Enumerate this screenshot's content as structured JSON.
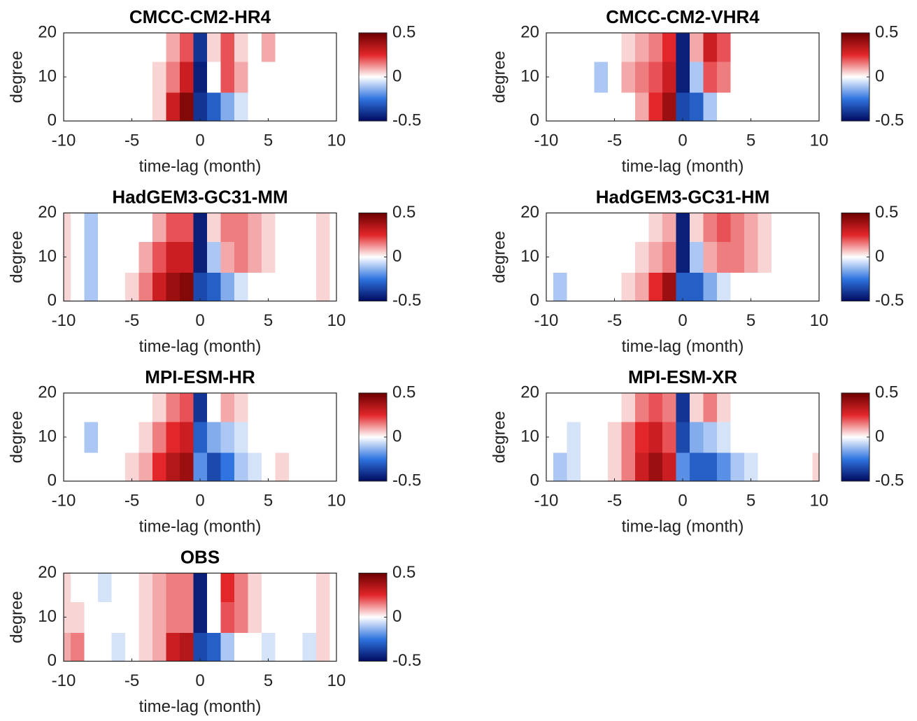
{
  "chart_data": [
    {
      "type": "contour",
      "title": "CMCC-CM2-HR4",
      "xlabel": "time-lag (month)",
      "ylabel": "degree",
      "x": [
        -10,
        -9,
        -8,
        -7,
        -6,
        -5,
        -4,
        -3,
        -2,
        -1,
        0,
        1,
        2,
        3,
        4,
        5,
        6,
        7,
        8,
        9,
        10
      ],
      "y": [
        3,
        10,
        17
      ],
      "z": [
        [
          0,
          0,
          0,
          0,
          0,
          0,
          0,
          0.05,
          0.3,
          0.45,
          -0.4,
          -0.3,
          -0.15,
          -0.05,
          0,
          0,
          0,
          0,
          0,
          0,
          0
        ],
        [
          0,
          0,
          0,
          0,
          0,
          0,
          0,
          0.05,
          0.15,
          0.3,
          -0.45,
          0,
          0.2,
          0.1,
          0,
          0,
          0,
          0,
          0,
          0,
          0
        ],
        [
          0,
          0,
          0,
          0,
          0,
          0,
          0,
          0,
          0.1,
          0.2,
          -0.4,
          0.05,
          0.2,
          0.05,
          0,
          0.1,
          0,
          0,
          0,
          0,
          0
        ]
      ],
      "xlim": [
        -10,
        10
      ],
      "xticks": [
        -10,
        -5,
        0,
        5,
        10
      ],
      "ylim": [
        0,
        20
      ],
      "yticks": [
        0,
        10,
        20
      ],
      "clim": [
        -0.5,
        0.5
      ],
      "cticks": [
        0.5,
        0,
        -0.5
      ],
      "cmap": [
        "#000a5e",
        "#2f74e0",
        "#ffffff",
        "#e2262a",
        "#6b0000"
      ]
    },
    {
      "type": "contour",
      "title": "CMCC-CM2-VHR4",
      "xlabel": "time-lag (month)",
      "ylabel": "degree",
      "x": [
        -10,
        -9,
        -8,
        -7,
        -6,
        -5,
        -4,
        -3,
        -2,
        -1,
        0,
        1,
        2,
        3,
        4,
        5,
        6,
        7,
        8,
        9,
        10
      ],
      "y": [
        3,
        10,
        17
      ],
      "z": [
        [
          0,
          0,
          0,
          0,
          0,
          0,
          0,
          0.1,
          0.25,
          0.4,
          -0.35,
          -0.3,
          -0.1,
          0,
          0,
          0,
          0,
          0,
          0,
          0,
          0
        ],
        [
          0,
          0,
          0,
          0,
          -0.1,
          0,
          0.1,
          0.15,
          0.2,
          0.3,
          -0.45,
          -0.1,
          0.2,
          0.15,
          0,
          0,
          0,
          0,
          0,
          0,
          0
        ],
        [
          0,
          0,
          0,
          0,
          0,
          0,
          0.05,
          0.1,
          0.15,
          0.25,
          -0.45,
          0.1,
          0.3,
          0.2,
          0,
          0,
          0,
          0,
          0,
          0,
          0
        ]
      ],
      "xlim": [
        -10,
        10
      ],
      "xticks": [
        -10,
        -5,
        0,
        5,
        10
      ],
      "ylim": [
        0,
        20
      ],
      "yticks": [
        0,
        10,
        20
      ],
      "clim": [
        -0.5,
        0.5
      ],
      "cticks": [
        0.5,
        0,
        -0.5
      ],
      "cmap": [
        "#000a5e",
        "#2f74e0",
        "#ffffff",
        "#e2262a",
        "#6b0000"
      ]
    },
    {
      "type": "contour",
      "title": "HadGEM3-GC31-MM",
      "xlabel": "time-lag (month)",
      "ylabel": "degree",
      "x": [
        -10,
        -9,
        -8,
        -7,
        -6,
        -5,
        -4,
        -3,
        -2,
        -1,
        0,
        1,
        2,
        3,
        4,
        5,
        6,
        7,
        8,
        9,
        10
      ],
      "y": [
        3,
        10,
        17
      ],
      "z": [
        [
          0.05,
          0,
          -0.1,
          0,
          0,
          0.05,
          0.15,
          0.3,
          0.4,
          0.45,
          -0.35,
          -0.3,
          -0.15,
          -0.05,
          0,
          0,
          0,
          0,
          0,
          0.05,
          0
        ],
        [
          0.05,
          0,
          -0.1,
          0,
          0,
          0,
          0.1,
          0.2,
          0.3,
          0.3,
          -0.45,
          -0.1,
          0.1,
          0.15,
          0.1,
          0.05,
          0,
          0,
          0,
          0.05,
          0
        ],
        [
          0.05,
          0,
          -0.1,
          0,
          0,
          0,
          0,
          0.1,
          0.2,
          0.2,
          -0.45,
          0.05,
          0.15,
          0.15,
          0.1,
          0.05,
          0,
          0,
          0,
          0.05,
          0
        ]
      ],
      "xlim": [
        -10,
        10
      ],
      "xticks": [
        -10,
        -5,
        0,
        5,
        10
      ],
      "ylim": [
        0,
        20
      ],
      "yticks": [
        0,
        10,
        20
      ],
      "clim": [
        -0.5,
        0.5
      ],
      "cticks": [
        0.5,
        0,
        -0.5
      ],
      "cmap": [
        "#000a5e",
        "#2f74e0",
        "#ffffff",
        "#e2262a",
        "#6b0000"
      ]
    },
    {
      "type": "contour",
      "title": "HadGEM3-GC31-HM",
      "xlabel": "time-lag (month)",
      "ylabel": "degree",
      "x": [
        -10,
        -9,
        -8,
        -7,
        -6,
        -5,
        -4,
        -3,
        -2,
        -1,
        0,
        1,
        2,
        3,
        4,
        5,
        6,
        7,
        8,
        9,
        10
      ],
      "y": [
        3,
        10,
        17
      ],
      "z": [
        [
          0,
          -0.1,
          0,
          0,
          0,
          0,
          0.05,
          0.1,
          0.25,
          0.4,
          -0.3,
          -0.3,
          -0.15,
          -0.05,
          0,
          0,
          0,
          0,
          0,
          0,
          0
        ],
        [
          0,
          0,
          0,
          0,
          0,
          0,
          0,
          0.05,
          0.1,
          0.15,
          -0.45,
          -0.1,
          0.1,
          0.15,
          0.15,
          0.1,
          0.05,
          0,
          0,
          0,
          0
        ],
        [
          0,
          0,
          0,
          0,
          0,
          0,
          0,
          0,
          0.05,
          0.1,
          -0.45,
          0.05,
          0.15,
          0.2,
          0.15,
          0.1,
          0.05,
          0,
          0,
          0,
          0
        ]
      ],
      "xlim": [
        -10,
        10
      ],
      "xticks": [
        -10,
        -5,
        0,
        5,
        10
      ],
      "ylim": [
        0,
        20
      ],
      "yticks": [
        0,
        10,
        20
      ],
      "clim": [
        -0.5,
        0.5
      ],
      "cticks": [
        0.5,
        0,
        -0.5
      ],
      "cmap": [
        "#000a5e",
        "#2f74e0",
        "#ffffff",
        "#e2262a",
        "#6b0000"
      ]
    },
    {
      "type": "contour",
      "title": "MPI-ESM-HR",
      "xlabel": "time-lag (month)",
      "ylabel": "degree",
      "x": [
        -10,
        -9,
        -8,
        -7,
        -6,
        -5,
        -4,
        -3,
        -2,
        -1,
        0,
        1,
        2,
        3,
        4,
        5,
        6,
        7,
        8,
        9,
        10
      ],
      "y": [
        3,
        10,
        17
      ],
      "z": [
        [
          0,
          0,
          0,
          0,
          0,
          0.05,
          0.1,
          0.25,
          0.35,
          0.4,
          -0.2,
          -0.35,
          -0.25,
          -0.1,
          -0.05,
          0,
          0.05,
          0,
          0,
          0,
          0
        ],
        [
          0,
          0,
          -0.1,
          0,
          0,
          0,
          0.05,
          0.15,
          0.25,
          0.3,
          -0.3,
          -0.15,
          -0.1,
          -0.05,
          0,
          0,
          0,
          0,
          0,
          0,
          0
        ],
        [
          0,
          0,
          0,
          0,
          0,
          0,
          0,
          0.05,
          0.15,
          0.2,
          -0.4,
          0,
          0.1,
          0.05,
          0,
          0,
          0,
          0,
          0,
          0,
          0
        ]
      ],
      "xlim": [
        -10,
        10
      ],
      "xticks": [
        -10,
        -5,
        0,
        5,
        10
      ],
      "ylim": [
        0,
        20
      ],
      "yticks": [
        0,
        10,
        20
      ],
      "clim": [
        -0.5,
        0.5
      ],
      "cticks": [
        0.5,
        0,
        -0.5
      ],
      "cmap": [
        "#000a5e",
        "#2f74e0",
        "#ffffff",
        "#e2262a",
        "#6b0000"
      ]
    },
    {
      "type": "contour",
      "title": "MPI-ESM-XR",
      "xlabel": "time-lag (month)",
      "ylabel": "degree",
      "x": [
        -10,
        -9,
        -8,
        -7,
        -6,
        -5,
        -4,
        -3,
        -2,
        -1,
        0,
        1,
        2,
        3,
        4,
        5,
        6,
        7,
        8,
        9,
        10
      ],
      "y": [
        3,
        10,
        17
      ],
      "z": [
        [
          0,
          -0.1,
          -0.05,
          0,
          0,
          0.05,
          0.15,
          0.3,
          0.4,
          0.3,
          -0.2,
          -0.3,
          -0.3,
          -0.2,
          -0.1,
          -0.05,
          0,
          0,
          0,
          0,
          0.05
        ],
        [
          0,
          0,
          -0.05,
          0,
          0,
          0.05,
          0.15,
          0.25,
          0.3,
          0.2,
          -0.35,
          -0.15,
          -0.1,
          -0.05,
          0,
          0,
          0,
          0,
          0,
          0,
          0
        ],
        [
          0,
          0,
          0,
          0,
          0,
          0,
          0.05,
          0.15,
          0.2,
          0.15,
          -0.4,
          0.05,
          0.15,
          0.05,
          0,
          0,
          0,
          0,
          0,
          0,
          0
        ]
      ],
      "xlim": [
        -10,
        10
      ],
      "xticks": [
        -10,
        -5,
        0,
        5,
        10
      ],
      "ylim": [
        0,
        20
      ],
      "yticks": [
        0,
        10,
        20
      ],
      "clim": [
        -0.5,
        0.5
      ],
      "cticks": [
        0.5,
        0,
        -0.5
      ],
      "cmap": [
        "#000a5e",
        "#2f74e0",
        "#ffffff",
        "#e2262a",
        "#6b0000"
      ]
    },
    {
      "type": "contour",
      "title": "OBS",
      "xlabel": "time-lag (month)",
      "ylabel": "degree",
      "x": [
        -10,
        -9,
        -8,
        -7,
        -6,
        -5,
        -4,
        -3,
        -2,
        -1,
        0,
        1,
        2,
        3,
        4,
        5,
        6,
        7,
        8,
        9,
        10
      ],
      "y": [
        3,
        10,
        17
      ],
      "z": [
        [
          0.1,
          0.15,
          0,
          0,
          -0.05,
          0,
          0.05,
          0.1,
          0.3,
          0.35,
          -0.35,
          -0.3,
          -0.1,
          0,
          0,
          -0.05,
          0,
          0,
          -0.05,
          0.05,
          0
        ],
        [
          0.05,
          0.05,
          0,
          0,
          0,
          0,
          0.05,
          0.1,
          0.15,
          0.15,
          -0.45,
          0,
          0.2,
          0.15,
          0.05,
          0,
          0,
          0,
          0,
          0.05,
          0
        ],
        [
          0.05,
          0,
          0,
          -0.05,
          0,
          0,
          0.05,
          0.1,
          0.15,
          0.15,
          -0.45,
          0,
          0.25,
          0.15,
          0.05,
          0,
          0,
          0,
          0,
          0.05,
          0
        ]
      ],
      "xlim": [
        -10,
        10
      ],
      "xticks": [
        -10,
        -5,
        0,
        5,
        10
      ],
      "ylim": [
        0,
        20
      ],
      "yticks": [
        0,
        10,
        20
      ],
      "clim": [
        -0.5,
        0.5
      ],
      "cticks": [
        0.5,
        0,
        -0.5
      ],
      "cmap": [
        "#000a5e",
        "#2f74e0",
        "#ffffff",
        "#e2262a",
        "#6b0000"
      ]
    }
  ]
}
